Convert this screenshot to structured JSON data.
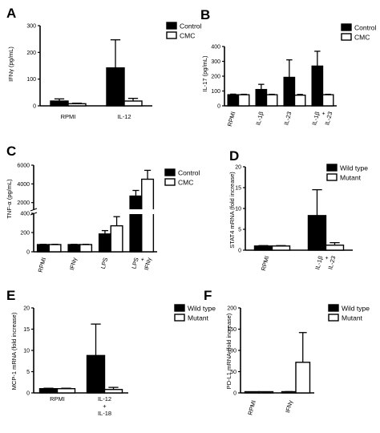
{
  "chart_data": [
    {
      "id": "A",
      "type": "bar",
      "panel_letter": "A",
      "ylabel": "IFNγ (pg/mL)",
      "yticks": [
        0,
        100,
        200,
        300
      ],
      "ylim": [
        0,
        300
      ],
      "categories": [
        {
          "lines": [
            "RPMI"
          ],
          "rotate": false
        },
        {
          "lines": [
            "IL-12"
          ],
          "rotate": false
        }
      ],
      "series": [
        {
          "name": "Control",
          "style": "filled",
          "values": [
            18,
            142
          ],
          "errors": [
            8,
            105
          ]
        },
        {
          "name": "CMC",
          "style": "open",
          "values": [
            8,
            18
          ],
          "errors": [
            2,
            10
          ]
        }
      ],
      "legend_placement": "top-right"
    },
    {
      "id": "B",
      "type": "bar",
      "panel_letter": "B",
      "ylabel": "IL-17 (pg/mL)",
      "yticks": [
        0,
        100,
        200,
        300,
        400
      ],
      "ylim": [
        0,
        400
      ],
      "categories": [
        {
          "lines": [
            "RPMI"
          ],
          "rotate": true
        },
        {
          "lines": [
            "IL-1β"
          ],
          "rotate": true
        },
        {
          "lines": [
            "IL-23"
          ],
          "rotate": true
        },
        {
          "lines": [
            "IL-1β",
            "+",
            "IL-23"
          ],
          "rotate": true
        }
      ],
      "series": [
        {
          "name": "Control",
          "style": "filled",
          "values": [
            75,
            110,
            192,
            268
          ],
          "errors": [
            4,
            35,
            118,
            100
          ]
        },
        {
          "name": "CMC",
          "style": "open",
          "values": [
            75,
            75,
            72,
            75
          ],
          "errors": [
            3,
            3,
            5,
            3
          ]
        }
      ],
      "legend_placement": "top-right"
    },
    {
      "id": "C",
      "type": "bar",
      "panel_letter": "C",
      "ylabel": "TNF-α (pg/mL)",
      "broken_axis": true,
      "lower_ticks": [
        0,
        200,
        400
      ],
      "upper_ticks": [
        2000,
        4000,
        6000
      ],
      "lower_range": [
        0,
        400
      ],
      "upper_range": [
        1200,
        6000
      ],
      "categories": [
        {
          "lines": [
            "RPMI"
          ],
          "rotate": true
        },
        {
          "lines": [
            "IFNγ"
          ],
          "rotate": true
        },
        {
          "lines": [
            "LPS"
          ],
          "rotate": true
        },
        {
          "lines": [
            "LPS",
            "+",
            "IFNγ"
          ],
          "rotate": true
        }
      ],
      "series": [
        {
          "name": "Control",
          "style": "filled",
          "values": [
            75,
            75,
            185,
            2700
          ],
          "errors": [
            3,
            3,
            35,
            600
          ]
        },
        {
          "name": "CMC",
          "style": "open",
          "values": [
            75,
            75,
            270,
            4500
          ],
          "errors": [
            3,
            3,
            95,
            950
          ]
        }
      ],
      "legend_placement": "top-right"
    },
    {
      "id": "D",
      "type": "bar",
      "panel_letter": "D",
      "ylabel": "STAT4 mRNA (fold increase)",
      "yticks": [
        0,
        5,
        10,
        15,
        20
      ],
      "ylim": [
        0,
        20
      ],
      "categories": [
        {
          "lines": [
            "RPMI"
          ],
          "rotate": true
        },
        {
          "lines": [
            "IL-1β",
            "+",
            "IL-23"
          ],
          "rotate": true
        }
      ],
      "series": [
        {
          "name": "Wild type",
          "style": "filled",
          "values": [
            1,
            8.3
          ],
          "errors": [
            0.1,
            6.2
          ]
        },
        {
          "name": "Mutant",
          "style": "open",
          "values": [
            1,
            1.2
          ],
          "errors": [
            0.1,
            0.6
          ]
        }
      ],
      "legend_placement": "top-right"
    },
    {
      "id": "E",
      "type": "bar",
      "panel_letter": "E",
      "ylabel": "MCP-1 mRNA (fold increase)",
      "yticks": [
        0,
        5,
        10,
        15,
        20
      ],
      "ylim": [
        0,
        20
      ],
      "categories": [
        {
          "lines": [
            "RPMI"
          ],
          "rotate": false
        },
        {
          "lines": [
            "IL-12",
            "+",
            "IL-18"
          ],
          "rotate": false
        }
      ],
      "series": [
        {
          "name": "Wild type",
          "style": "filled",
          "values": [
            1,
            8.8
          ],
          "errors": [
            0.1,
            7.4
          ]
        },
        {
          "name": "Mutant",
          "style": "open",
          "values": [
            1,
            0.8
          ],
          "errors": [
            0.1,
            0.5
          ]
        }
      ],
      "legend_placement": "top-right"
    },
    {
      "id": "F",
      "type": "bar",
      "panel_letter": "F",
      "ylabel": "PD-L1 mRNA (fold increase)",
      "yticks": [
        0,
        50,
        100,
        150,
        200
      ],
      "ylim": [
        0,
        200
      ],
      "categories": [
        {
          "lines": [
            "RPMI"
          ],
          "rotate": true
        },
        {
          "lines": [
            "IFNγ"
          ],
          "rotate": true
        }
      ],
      "series": [
        {
          "name": "Wild type",
          "style": "filled",
          "values": [
            1,
            2
          ],
          "errors": [
            0.2,
            1
          ]
        },
        {
          "name": "Mutant",
          "style": "open",
          "values": [
            1,
            72
          ],
          "errors": [
            0.2,
            70
          ]
        }
      ],
      "legend_placement": "top-right"
    }
  ]
}
